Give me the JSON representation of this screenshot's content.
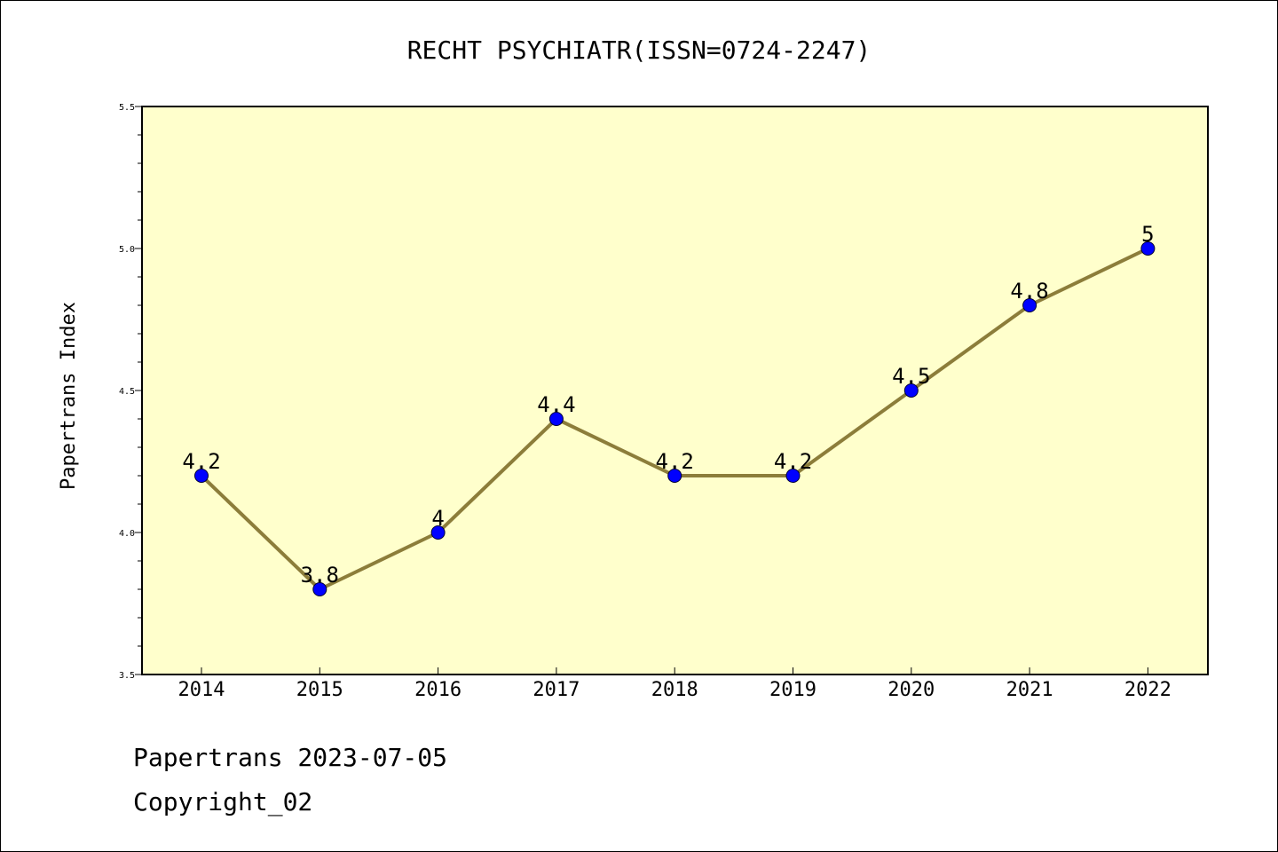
{
  "colors": {
    "plot_background": "#ffffcc",
    "line": "#8c7d3a",
    "marker": "#0000ff",
    "marker_edge": "#000033"
  },
  "footer": {
    "line1": "Papertrans 2023-07-05",
    "line2": "Copyright_02"
  },
  "chart_data": {
    "type": "line",
    "title": "RECHT PSYCHIATR(ISSN=0724-2247)",
    "xlabel": "",
    "ylabel": "Papertrans Index",
    "categories": [
      "2014",
      "2015",
      "2016",
      "2017",
      "2018",
      "2019",
      "2020",
      "2021",
      "2022"
    ],
    "series": [
      {
        "values": [
          4.2,
          3.8,
          4.0,
          4.4,
          4.2,
          4.2,
          4.5,
          4.8,
          5.0
        ],
        "data_labels": [
          "4.2",
          "3.8",
          "4",
          "4.4",
          "4.2",
          "4.2",
          "4.5",
          "4.8",
          "5"
        ]
      }
    ],
    "ylim": [
      3.5,
      5.5
    ],
    "yticks": [
      "3.5",
      "4.0",
      "4.5",
      "5.0",
      "5.5"
    ],
    "grid": false,
    "legend": "none"
  }
}
